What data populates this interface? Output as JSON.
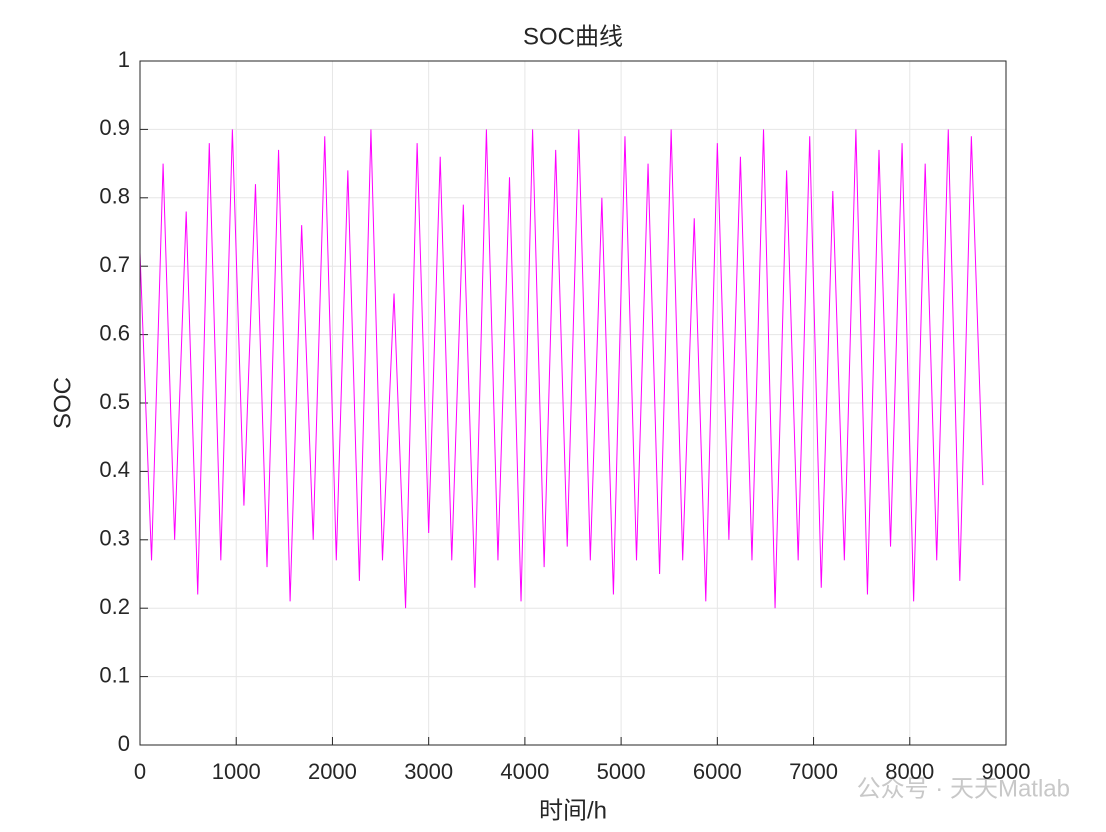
{
  "chart_data": {
    "type": "line",
    "title": "SOC曲线",
    "x_label": "时间/h",
    "y_label": "SOC",
    "annotation": "公众号 · 天天Matlab",
    "x": [
      0,
      120,
      240,
      360,
      480,
      600,
      720,
      840,
      960,
      1080,
      1200,
      1320,
      1440,
      1560,
      1680,
      1800,
      1920,
      2040,
      2160,
      2280,
      2400,
      2520,
      2640,
      2760,
      2880,
      3000,
      3120,
      3240,
      3360,
      3480,
      3600,
      3720,
      3840,
      3960,
      4080,
      4200,
      4320,
      4440,
      4560,
      4680,
      4800,
      4920,
      5040,
      5160,
      5280,
      5400,
      5520,
      5640,
      5760,
      5880,
      6000,
      6120,
      6240,
      6360,
      6480,
      6600,
      6720,
      6840,
      6960,
      7080,
      7200,
      7320,
      7440,
      7560,
      7680,
      7800,
      7920,
      8040,
      8160,
      8280,
      8400,
      8520,
      8640,
      8760
    ],
    "series": [
      {
        "name": "SOC",
        "color": "#ff00ff",
        "values": [
          0.72,
          0.27,
          0.85,
          0.3,
          0.78,
          0.22,
          0.88,
          0.27,
          0.9,
          0.35,
          0.82,
          0.26,
          0.87,
          0.21,
          0.76,
          0.3,
          0.89,
          0.27,
          0.84,
          0.24,
          0.9,
          0.27,
          0.66,
          0.2,
          0.88,
          0.31,
          0.86,
          0.27,
          0.79,
          0.23,
          0.9,
          0.27,
          0.83,
          0.21,
          0.9,
          0.26,
          0.87,
          0.29,
          0.9,
          0.27,
          0.8,
          0.22,
          0.89,
          0.27,
          0.85,
          0.25,
          0.9,
          0.27,
          0.77,
          0.21,
          0.88,
          0.3,
          0.86,
          0.27,
          0.9,
          0.2,
          0.84,
          0.27,
          0.89,
          0.23,
          0.81,
          0.27,
          0.9,
          0.22,
          0.87,
          0.29,
          0.88,
          0.21,
          0.85,
          0.27,
          0.9,
          0.24,
          0.89,
          0.38
        ]
      }
    ],
    "xlim": [
      0,
      9000
    ],
    "xticks": [
      0,
      1000,
      2000,
      3000,
      4000,
      5000,
      6000,
      7000,
      8000,
      9000
    ],
    "ylim": [
      0,
      1
    ],
    "yticks": [
      0,
      0.1,
      0.2,
      0.3,
      0.4,
      0.5,
      0.6,
      0.7,
      0.8,
      0.9,
      1
    ],
    "grid": true
  }
}
